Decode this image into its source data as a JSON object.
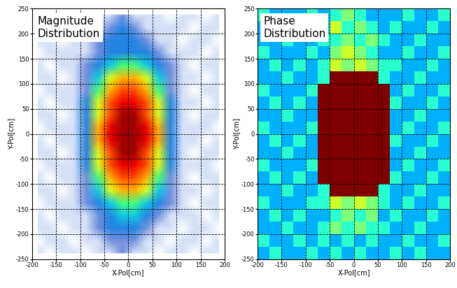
{
  "chart_data": [
    {
      "type": "heatmap",
      "title": "Magnitude\nDistribution",
      "x_label": "X-Pol[cm]",
      "y_label": "Y-Pol[cm]",
      "x": [
        -187.5,
        -162.5,
        -137.5,
        -112.5,
        -87.5,
        -62.5,
        -37.5,
        -12.5,
        12.5,
        37.5,
        62.5,
        87.5,
        112.5,
        137.5,
        162.5,
        187.5
      ],
      "y": [
        -237.5,
        -212.5,
        -187.5,
        -162.5,
        -137.5,
        -112.5,
        -87.5,
        -62.5,
        -37.5,
        -12.5,
        12.5,
        37.5,
        62.5,
        87.5,
        112.5,
        137.5,
        162.5,
        187.5,
        212.5,
        237.5
      ],
      "cells": [
        [
          1,
          0,
          1,
          1,
          0,
          1,
          1,
          2,
          1,
          1,
          0,
          1,
          1,
          0,
          1,
          1
        ],
        [
          0,
          1,
          1,
          0,
          1,
          1,
          2,
          2,
          2,
          1,
          1,
          0,
          1,
          1,
          0,
          1
        ],
        [
          1,
          1,
          0,
          1,
          1,
          2,
          3,
          3,
          3,
          2,
          1,
          1,
          0,
          1,
          1,
          0
        ],
        [
          1,
          0,
          1,
          1,
          1,
          2,
          3,
          4,
          4,
          3,
          2,
          1,
          1,
          1,
          0,
          1
        ],
        [
          0,
          1,
          1,
          1,
          2,
          3,
          4,
          5,
          5,
          4,
          3,
          2,
          1,
          0,
          1,
          1
        ],
        [
          1,
          1,
          0,
          1,
          2,
          4,
          6,
          7,
          7,
          6,
          4,
          2,
          1,
          1,
          0,
          1
        ],
        [
          1,
          0,
          1,
          1,
          2,
          5,
          7,
          8,
          8,
          7,
          5,
          2,
          1,
          0,
          1,
          1
        ],
        [
          0,
          1,
          1,
          1,
          3,
          6,
          8,
          9,
          9,
          8,
          6,
          3,
          1,
          1,
          1,
          0
        ],
        [
          1,
          1,
          0,
          1,
          3,
          6,
          8,
          10,
          10,
          8,
          6,
          3,
          1,
          0,
          1,
          1
        ],
        [
          1,
          0,
          1,
          1,
          3,
          7,
          9,
          10,
          10,
          9,
          7,
          3,
          1,
          1,
          0,
          1
        ],
        [
          0,
          1,
          1,
          1,
          3,
          7,
          9,
          10,
          10,
          9,
          7,
          3,
          1,
          1,
          1,
          0
        ],
        [
          1,
          1,
          0,
          1,
          3,
          6,
          8,
          10,
          10,
          8,
          6,
          3,
          1,
          0,
          1,
          1
        ],
        [
          1,
          0,
          1,
          1,
          3,
          6,
          8,
          9,
          9,
          8,
          6,
          3,
          1,
          1,
          0,
          1
        ],
        [
          0,
          1,
          1,
          1,
          2,
          5,
          7,
          8,
          8,
          7,
          5,
          2,
          1,
          0,
          1,
          1
        ],
        [
          1,
          1,
          0,
          1,
          2,
          4,
          6,
          7,
          7,
          6,
          4,
          2,
          1,
          1,
          0,
          1
        ],
        [
          1,
          0,
          1,
          1,
          2,
          3,
          4,
          5,
          5,
          4,
          3,
          2,
          1,
          0,
          1,
          1
        ],
        [
          0,
          1,
          1,
          1,
          1,
          2,
          3,
          3,
          3,
          3,
          2,
          1,
          1,
          1,
          0,
          1
        ],
        [
          1,
          1,
          0,
          1,
          1,
          2,
          3,
          3,
          3,
          2,
          1,
          1,
          0,
          1,
          1,
          0
        ],
        [
          1,
          0,
          1,
          1,
          1,
          1,
          2,
          3,
          2,
          1,
          1,
          1,
          1,
          0,
          1,
          1
        ],
        [
          0,
          1,
          1,
          0,
          1,
          1,
          1,
          2,
          1,
          1,
          1,
          0,
          1,
          1,
          0,
          1
        ]
      ],
      "value_range": [
        0,
        10
      ],
      "xlim": [
        -200,
        200
      ],
      "xticks": [
        -200,
        -150,
        -100,
        -50,
        0,
        50,
        100,
        150,
        200
      ],
      "ylim": [
        -250,
        250
      ],
      "yticks": [
        -250,
        -200,
        -150,
        -100,
        -50,
        0,
        50,
        100,
        150,
        200,
        250
      ],
      "grid": true
    },
    {
      "type": "heatmap",
      "title": "Phase\nDistribution",
      "x_label": "X-Pol[cm]",
      "y_label": "Y-Pol[cm]",
      "x": [
        -187.5,
        -162.5,
        -137.5,
        -112.5,
        -87.5,
        -62.5,
        -37.5,
        -12.5,
        12.5,
        37.5,
        62.5,
        87.5,
        112.5,
        137.5,
        162.5,
        187.5
      ],
      "y": [
        -237.5,
        -212.5,
        -187.5,
        -162.5,
        -137.5,
        -112.5,
        -87.5,
        -62.5,
        -37.5,
        -12.5,
        12.5,
        37.5,
        62.5,
        87.5,
        112.5,
        137.5,
        162.5,
        187.5,
        212.5,
        237.5
      ],
      "cells": [
        [
          3,
          4,
          3,
          3,
          4,
          3,
          4,
          3,
          4,
          3,
          3,
          4,
          3,
          4,
          3,
          3
        ],
        [
          4,
          3,
          3,
          4,
          3,
          4,
          3,
          4,
          3,
          4,
          3,
          3,
          4,
          3,
          3,
          4
        ],
        [
          3,
          3,
          4,
          3,
          3,
          4,
          5,
          4,
          5,
          4,
          4,
          3,
          3,
          4,
          3,
          3
        ],
        [
          3,
          4,
          3,
          4,
          3,
          3,
          4,
          5,
          4,
          5,
          3,
          4,
          3,
          3,
          4,
          3
        ],
        [
          4,
          3,
          3,
          3,
          4,
          4,
          6,
          5,
          6,
          5,
          4,
          3,
          4,
          3,
          3,
          4
        ],
        [
          3,
          3,
          4,
          3,
          3,
          4,
          10,
          10,
          10,
          10,
          4,
          3,
          3,
          4,
          3,
          3
        ],
        [
          3,
          4,
          3,
          4,
          3,
          10,
          10,
          10,
          10,
          10,
          10,
          4,
          3,
          3,
          4,
          3
        ],
        [
          4,
          3,
          3,
          3,
          4,
          10,
          10,
          10,
          10,
          10,
          10,
          3,
          4,
          3,
          3,
          4
        ],
        [
          3,
          3,
          4,
          3,
          3,
          10,
          10,
          10,
          10,
          10,
          10,
          3,
          3,
          4,
          3,
          3
        ],
        [
          3,
          4,
          3,
          4,
          3,
          10,
          10,
          10,
          10,
          10,
          10,
          4,
          3,
          3,
          4,
          3
        ],
        [
          4,
          3,
          3,
          3,
          4,
          10,
          10,
          10,
          10,
          10,
          10,
          3,
          4,
          3,
          3,
          4
        ],
        [
          3,
          3,
          4,
          3,
          3,
          10,
          10,
          10,
          10,
          10,
          10,
          3,
          3,
          4,
          3,
          3
        ],
        [
          3,
          4,
          3,
          4,
          3,
          10,
          10,
          10,
          10,
          10,
          10,
          4,
          3,
          3,
          4,
          3
        ],
        [
          4,
          3,
          3,
          3,
          4,
          10,
          10,
          10,
          10,
          10,
          10,
          3,
          4,
          3,
          3,
          4
        ],
        [
          3,
          3,
          4,
          3,
          3,
          4,
          10,
          10,
          10,
          10,
          4,
          3,
          3,
          4,
          3,
          3
        ],
        [
          3,
          4,
          3,
          4,
          3,
          4,
          6,
          5,
          6,
          5,
          4,
          4,
          3,
          3,
          4,
          3
        ],
        [
          4,
          3,
          3,
          3,
          4,
          3,
          5,
          6,
          5,
          4,
          3,
          3,
          4,
          3,
          3,
          4
        ],
        [
          3,
          3,
          4,
          3,
          3,
          4,
          4,
          5,
          4,
          5,
          4,
          3,
          3,
          4,
          3,
          3
        ],
        [
          3,
          4,
          3,
          4,
          3,
          3,
          6,
          4,
          5,
          4,
          3,
          4,
          3,
          3,
          4,
          3
        ],
        [
          4,
          3,
          3,
          3,
          4,
          3,
          4,
          5,
          4,
          3,
          3,
          3,
          4,
          3,
          3,
          4
        ]
      ],
      "value_range": [
        0,
        10
      ],
      "xlim": [
        -200,
        200
      ],
      "xticks": [
        -200,
        -150,
        -100,
        -50,
        0,
        50,
        100,
        150,
        200
      ],
      "ylim": [
        -250,
        250
      ],
      "yticks": [
        -250,
        -200,
        -150,
        -100,
        -50,
        0,
        50,
        100,
        150,
        200,
        250
      ],
      "grid": true
    }
  ]
}
